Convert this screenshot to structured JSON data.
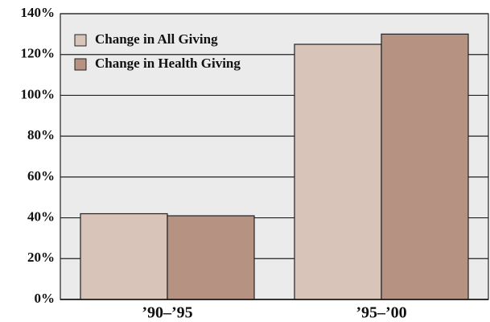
{
  "chart_data": {
    "type": "bar",
    "categories": [
      "’90–’95",
      "’95–’00"
    ],
    "series": [
      {
        "name": "Change in All Giving",
        "color": "#d9c4b9",
        "values": [
          42,
          125
        ]
      },
      {
        "name": "Change in Health Giving",
        "color": "#b69283",
        "values": [
          41,
          130
        ]
      }
    ],
    "ylim": [
      0,
      140
    ],
    "yticks": [
      {
        "value": 0,
        "label": "0%"
      },
      {
        "value": 20,
        "label": "20%"
      },
      {
        "value": 40,
        "label": "40%"
      },
      {
        "value": 60,
        "label": "60%"
      },
      {
        "value": 80,
        "label": "80%"
      },
      {
        "value": 100,
        "label": "100%"
      },
      {
        "value": 120,
        "label": "120%"
      },
      {
        "value": 140,
        "label": "140%"
      }
    ],
    "grid": true,
    "legend": "top-left"
  }
}
